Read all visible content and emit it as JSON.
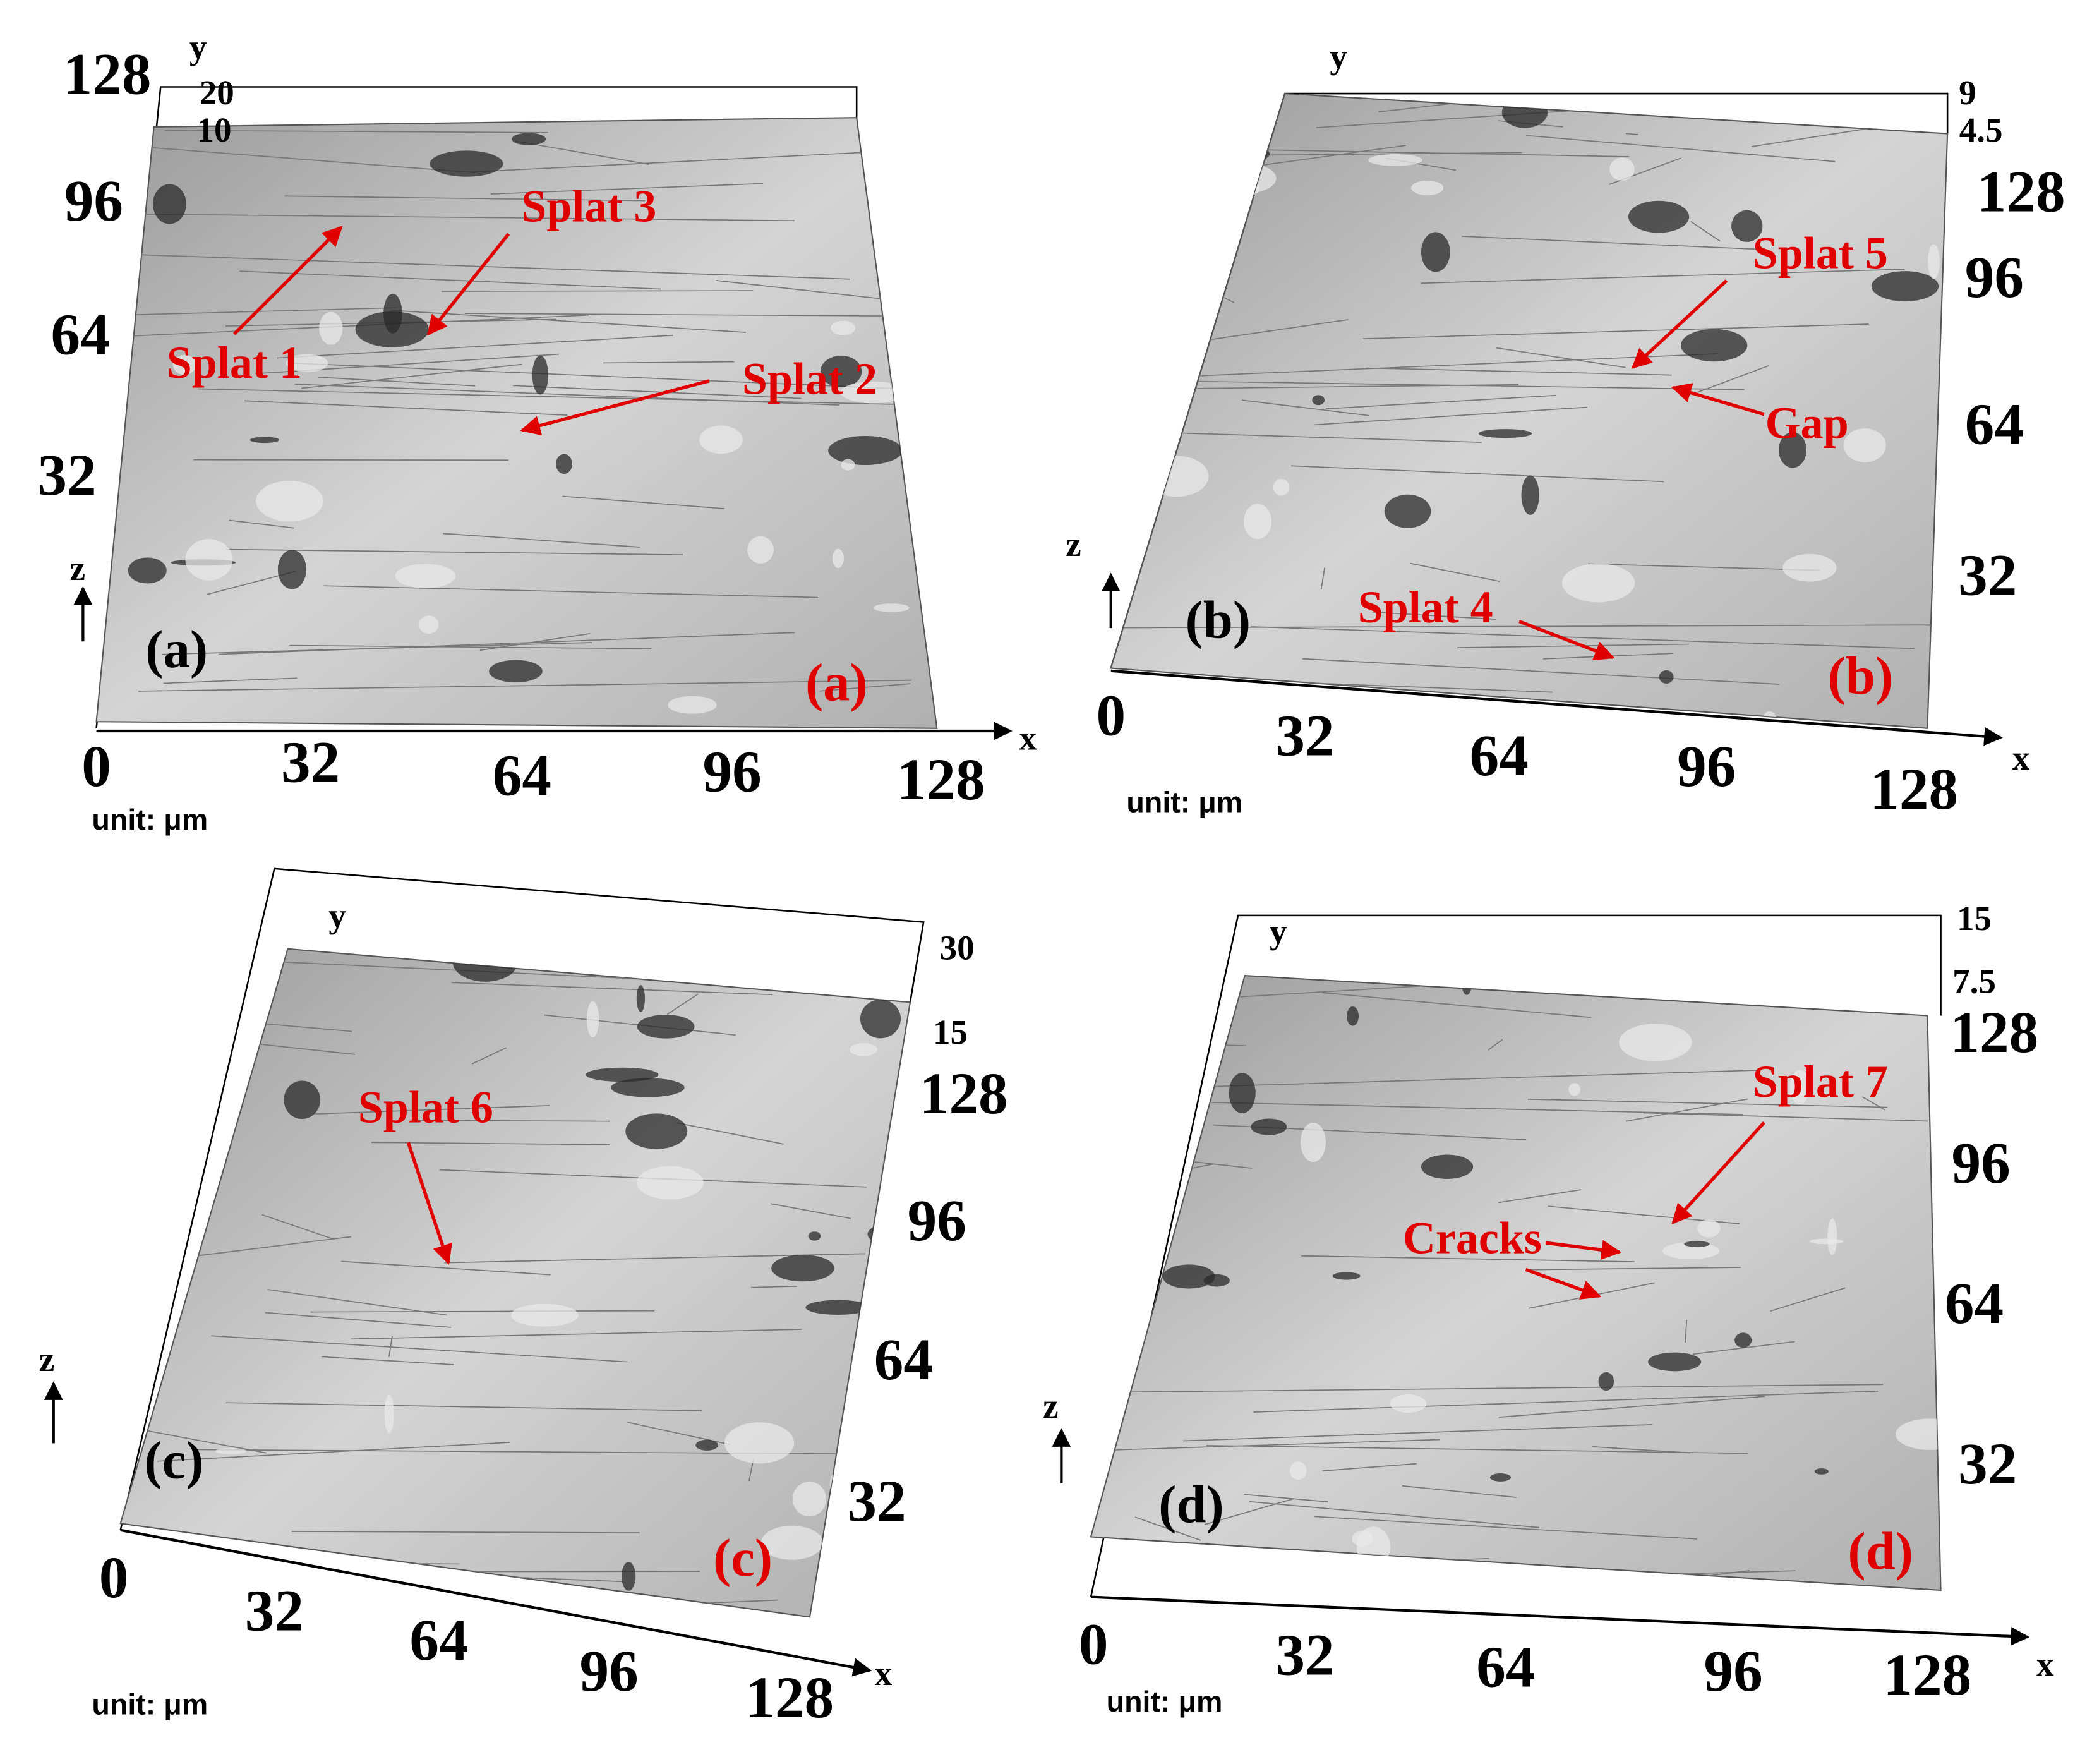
{
  "panels": [
    {
      "label": "(a)",
      "unit": "unit: μm",
      "x_axis": {
        "name": "x",
        "ticks": [
          "0",
          "32",
          "64",
          "96",
          "128"
        ]
      },
      "y_axis": {
        "name": "y",
        "ticks": [
          "128",
          "96",
          "64",
          "32"
        ]
      },
      "z_axis": {
        "name": "z",
        "ticks": [
          "20",
          "10"
        ]
      },
      "annotations": [
        {
          "text": "Splat 1"
        },
        {
          "text": "Splat 3"
        },
        {
          "text": "Splat 2"
        }
      ]
    },
    {
      "label": "(b)",
      "unit": "unit: μm",
      "x_axis": {
        "name": "x",
        "ticks": [
          "0",
          "32",
          "64",
          "96",
          "128"
        ]
      },
      "y_axis": {
        "name": "y",
        "ticks": [
          "128",
          "96",
          "64",
          "32"
        ]
      },
      "z_axis": {
        "name": "z",
        "ticks": [
          "9",
          "4.5"
        ]
      },
      "annotations": [
        {
          "text": "Splat 5"
        },
        {
          "text": "Gap"
        },
        {
          "text": "Splat 4"
        }
      ]
    },
    {
      "label": "(c)",
      "unit": "unit: μm",
      "x_axis": {
        "name": "x",
        "ticks": [
          "0",
          "32",
          "64",
          "96",
          "128"
        ]
      },
      "y_axis": {
        "name": "y",
        "ticks": [
          "128",
          "96",
          "64",
          "32"
        ]
      },
      "z_axis": {
        "name": "z",
        "ticks": [
          "30",
          "15"
        ]
      },
      "annotations": [
        {
          "text": "Splat 6"
        }
      ]
    },
    {
      "label": "(d)",
      "unit": "unit: μm",
      "x_axis": {
        "name": "x",
        "ticks": [
          "0",
          "32",
          "64",
          "96",
          "128"
        ]
      },
      "y_axis": {
        "name": "y",
        "ticks": [
          "128",
          "96",
          "64",
          "32"
        ]
      },
      "z_axis": {
        "name": "z",
        "ticks": [
          "15",
          "7.5"
        ]
      },
      "annotations": [
        {
          "text": "Splat 7"
        },
        {
          "text": "Cracks"
        }
      ]
    }
  ]
}
